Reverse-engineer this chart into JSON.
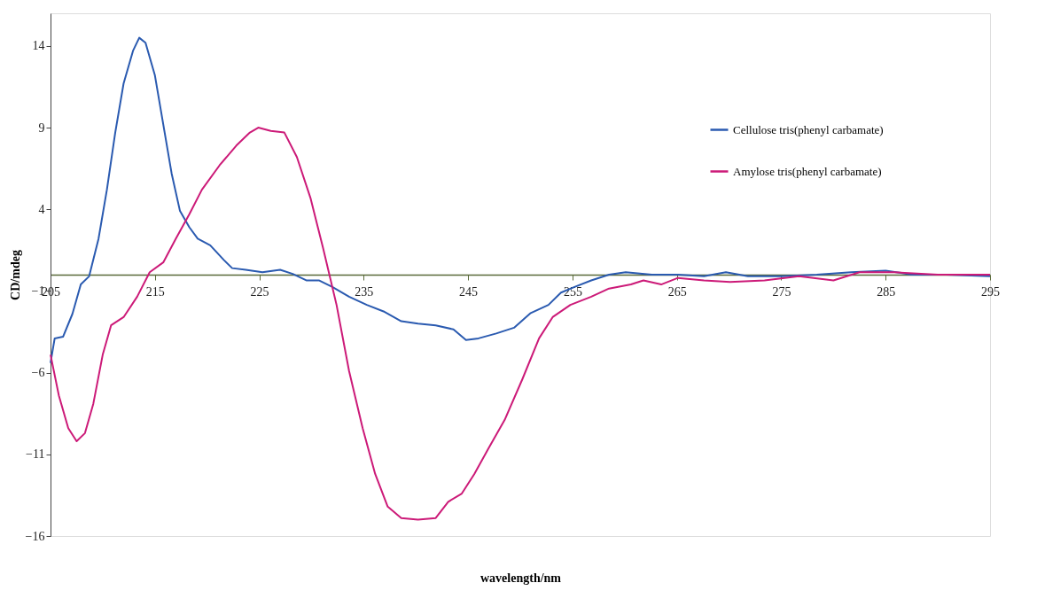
{
  "chart_data": {
    "type": "line",
    "xlabel": "wavelength/nm",
    "ylabel": "CD/mdeg",
    "xlim": [
      205,
      295
    ],
    "xticks": [
      205,
      215,
      225,
      235,
      245,
      255,
      265,
      275,
      285,
      295
    ],
    "ylim": [
      -16,
      16
    ],
    "yticks": [
      14,
      9,
      4,
      -1,
      -6,
      -11,
      -16
    ],
    "grid": false,
    "legend": "top right",
    "marker": "none",
    "line_style": "solid",
    "series": [
      {
        "name": "Cellulose tris(phenyl carbamate)",
        "color": "#2a5ab0",
        "x": [
          205,
          205.4,
          206.2,
          207.1,
          207.9,
          208.7,
          209.6,
          210.4,
          211.2,
          212.0,
          212.9,
          213.5,
          214.1,
          215,
          215.8,
          216.6,
          217.4,
          218.3,
          219.1,
          220.3,
          221.6,
          222.4,
          223.7,
          225.3,
          227,
          228.2,
          229.5,
          230.7,
          232,
          233.6,
          235.3,
          236.9,
          238.6,
          240.2,
          241.9,
          243.6,
          244.8,
          246,
          247.7,
          249.4,
          251,
          252.7,
          253.9,
          255.2,
          256.8,
          258.5,
          260.1,
          262.6,
          265.1,
          267.6,
          269.7,
          271.8,
          275.1,
          278.4,
          281.7,
          285,
          287.5,
          290.8,
          295
        ],
        "values": [
          -5.4,
          -3.9,
          -3.8,
          -2.4,
          -0.6,
          -0.1,
          2.2,
          5.2,
          8.7,
          11.7,
          13.7,
          14.5,
          14.2,
          12.2,
          9.2,
          6.2,
          3.9,
          2.9,
          2.2,
          1.8,
          0.9,
          0.4,
          0.3,
          0.15,
          0.3,
          0.05,
          -0.35,
          -0.35,
          -0.75,
          -1.35,
          -1.85,
          -2.25,
          -2.85,
          -3.0,
          -3.1,
          -3.35,
          -4.0,
          -3.9,
          -3.6,
          -3.25,
          -2.35,
          -1.85,
          -1.1,
          -0.75,
          -0.35,
          0,
          0.15,
          0,
          0,
          -0.1,
          0.15,
          -0.1,
          -0.1,
          0,
          0.15,
          0.25,
          0,
          0,
          -0.1
        ]
      },
      {
        "name": "Amylose tris(phenyl carbamate)",
        "color": "#cc1a78",
        "x": [
          205,
          205.8,
          206.7,
          207.5,
          208.3,
          209.1,
          210,
          210.8,
          212,
          213.3,
          214.5,
          215.8,
          217,
          218.3,
          219.5,
          221.2,
          222.8,
          224.1,
          224.9,
          226.1,
          227.4,
          228.6,
          229.9,
          231.1,
          232.4,
          233.6,
          234.9,
          236.1,
          237.3,
          238.6,
          240.2,
          241.9,
          243.1,
          244.4,
          245.6,
          246.9,
          248.5,
          250.2,
          251.8,
          253.1,
          254.8,
          256.8,
          258.5,
          260.6,
          261.8,
          263.5,
          265.1,
          267.6,
          270.1,
          273.4,
          276.7,
          280,
          282.5,
          285.8,
          290,
          295
        ],
        "values": [
          -4.9,
          -7.4,
          -9.4,
          -10.2,
          -9.7,
          -7.9,
          -4.9,
          -3.1,
          -2.6,
          -1.35,
          0.15,
          0.75,
          2.2,
          3.7,
          5.2,
          6.7,
          7.9,
          8.7,
          9.0,
          8.8,
          8.7,
          7.2,
          4.7,
          1.65,
          -1.85,
          -5.9,
          -9.4,
          -12.2,
          -14.2,
          -14.9,
          -15.0,
          -14.9,
          -13.9,
          -13.4,
          -12.2,
          -10.7,
          -8.9,
          -6.4,
          -3.9,
          -2.6,
          -1.85,
          -1.35,
          -0.85,
          -0.6,
          -0.35,
          -0.6,
          -0.2,
          -0.35,
          -0.45,
          -0.35,
          -0.1,
          -0.35,
          0.15,
          0.15,
          0,
          0
        ]
      }
    ]
  }
}
